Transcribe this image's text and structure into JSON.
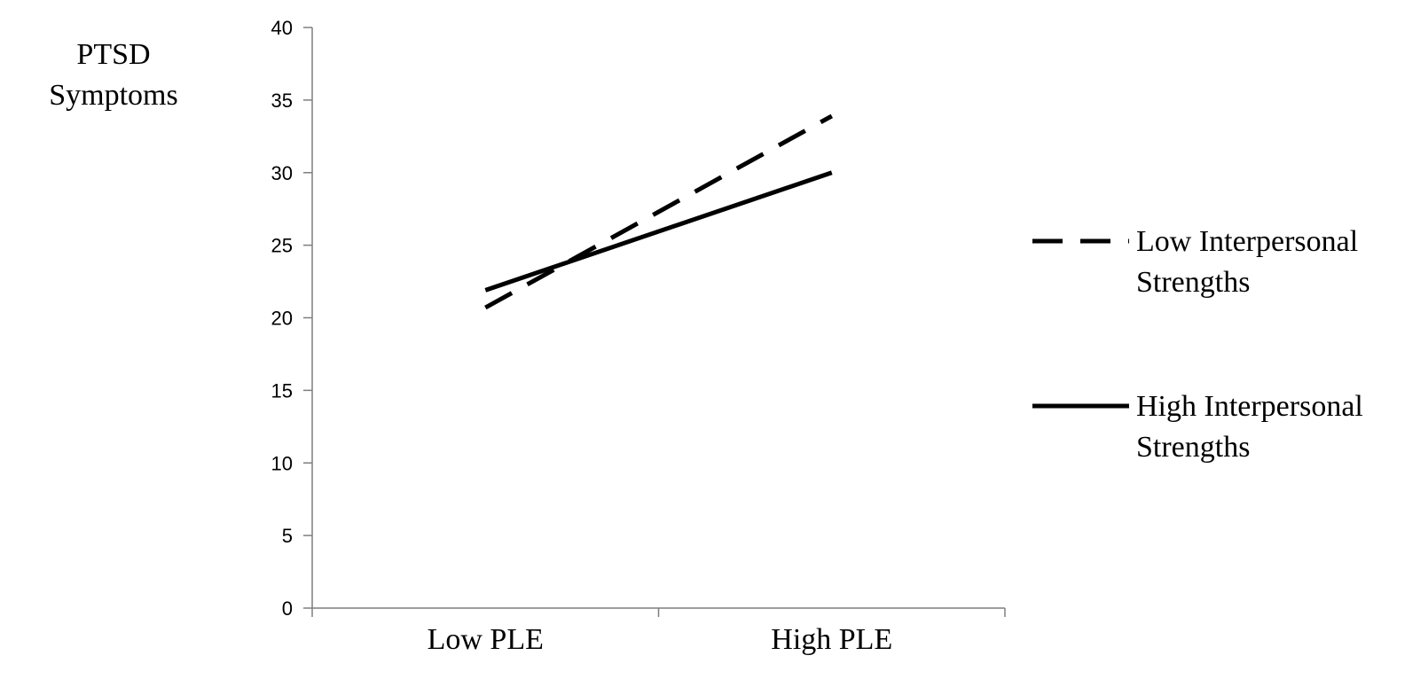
{
  "chart_data": {
    "type": "line",
    "categories": [
      "Low PLE",
      "High PLE"
    ],
    "ylabel": [
      "PTSD",
      "Symptoms"
    ],
    "xlabel": "",
    "ylim": [
      0,
      40
    ],
    "yticks": [
      0,
      5,
      10,
      15,
      20,
      25,
      30,
      35,
      40
    ],
    "grid": false,
    "legend_position": "right",
    "series": [
      {
        "name": [
          "Low Interpersonal",
          "Strengths"
        ],
        "values": [
          20.7,
          33.9
        ],
        "style": "dashed",
        "color": "#000000"
      },
      {
        "name": [
          "High Interpersonal",
          "Strengths"
        ],
        "values": [
          21.9,
          30.0
        ],
        "style": "solid",
        "color": "#000000"
      }
    ]
  }
}
